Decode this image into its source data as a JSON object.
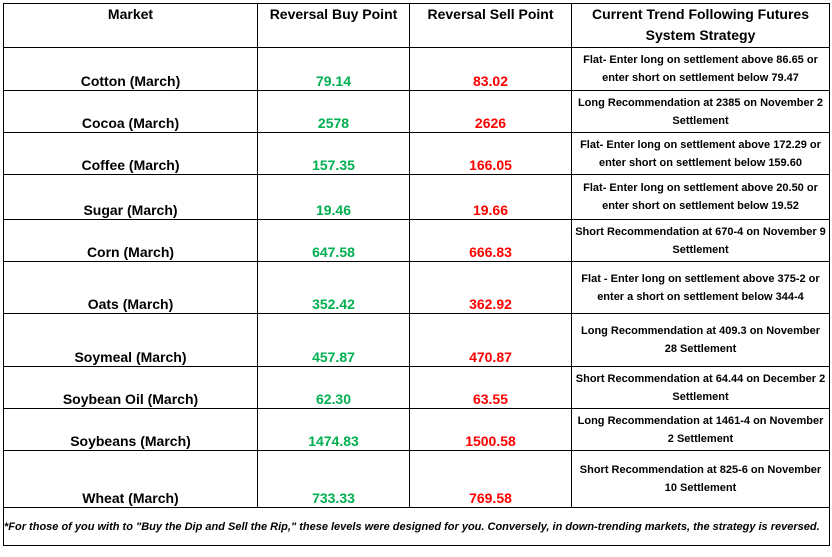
{
  "headers": {
    "market": "Market",
    "buy": "Reversal Buy Point",
    "sell": "Reversal Sell Point",
    "strategy": "Current Trend Following Futures System Strategy"
  },
  "rows": [
    {
      "market": "Cotton (March)",
      "buy": "79.14",
      "sell": "83.02",
      "strategy": "Flat- Enter long on settlement above 86.65 or enter short on settlement below 79.47"
    },
    {
      "market": "Cocoa (March)",
      "buy": "2578",
      "sell": "2626",
      "strategy": "Long Recommendation at 2385 on November 2 Settlement"
    },
    {
      "market": "Coffee (March)",
      "buy": "157.35",
      "sell": "166.05",
      "strategy": "Flat- Enter long on settlement above 172.29 or enter short on settlement below 159.60"
    },
    {
      "market": "Sugar (March)",
      "buy": "19.46",
      "sell": "19.66",
      "strategy": "Flat- Enter long on settlement above 20.50 or enter short on settlement below 19.52"
    },
    {
      "market": "Corn (March)",
      "buy": "647.58",
      "sell": "666.83",
      "strategy": "Short Recommendation at 670-4 on November 9 Settlement"
    },
    {
      "market": "Oats (March)",
      "buy": "352.42",
      "sell": "362.92",
      "strategy": "Flat - Enter long on settlement above 375-2 or enter a short on settlement below 344-4"
    },
    {
      "market": "Soymeal (March)",
      "buy": "457.87",
      "sell": "470.87",
      "strategy": "Long Recommendation at 409.3 on November 28 Settlement"
    },
    {
      "market": "Soybean Oil (March)",
      "buy": "62.30",
      "sell": "63.55",
      "strategy": "Short Recommendation at 64.44 on December 2 Settlement"
    },
    {
      "market": "Soybeans (March)",
      "buy": "1474.83",
      "sell": "1500.58",
      "strategy": "Long Recommendation at 1461-4 on November 2 Settlement"
    },
    {
      "market": "Wheat (March)",
      "buy": "733.33",
      "sell": "769.58",
      "strategy": "Short Recommendation at 825-6 on November 10 Settlement"
    }
  ],
  "footnote": "*For those of you with to \"Buy the Dip and Sell the Rip,\" these levels were designed for you. Conversely, in down-trending markets, the strategy is reversed.",
  "colors": {
    "buy": "#00B050",
    "sell": "#FF0000"
  }
}
